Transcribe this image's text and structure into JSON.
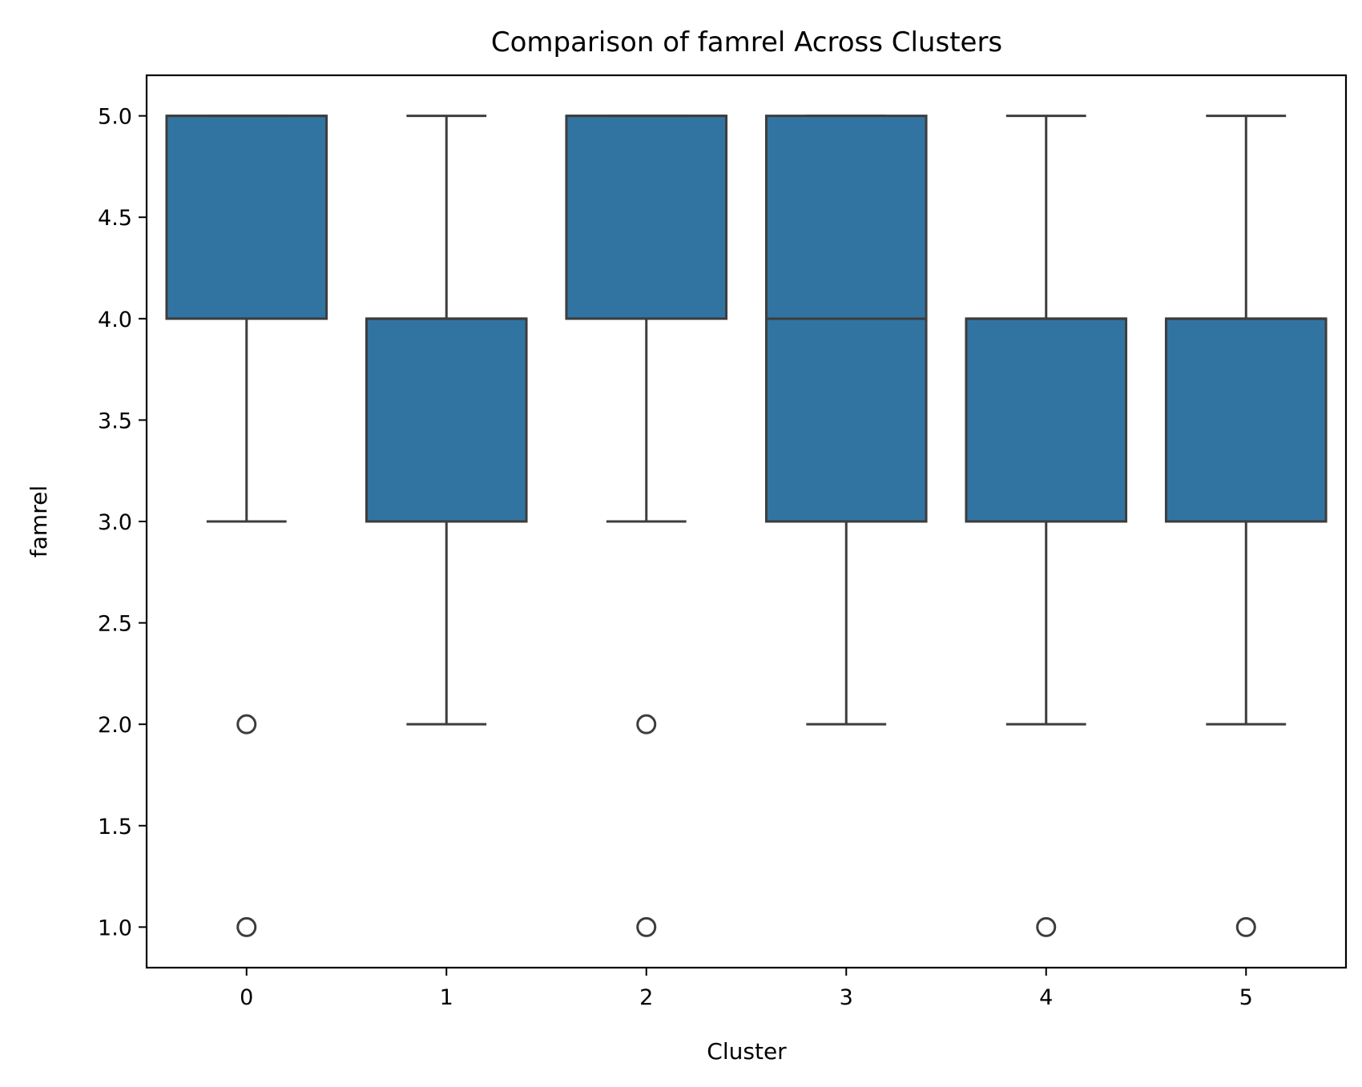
{
  "chart_data": {
    "type": "box",
    "title": "Comparison of famrel Across Clusters",
    "xlabel": "Cluster",
    "ylabel": "famrel",
    "ylim": [
      0.8,
      5.2
    ],
    "yticks": [
      1.0,
      1.5,
      2.0,
      2.5,
      3.0,
      3.5,
      4.0,
      4.5,
      5.0
    ],
    "ytick_labels": [
      "1.0",
      "1.5",
      "2.0",
      "2.5",
      "3.0",
      "3.5",
      "4.0",
      "4.5",
      "5.0"
    ],
    "categories": [
      "0",
      "1",
      "2",
      "3",
      "4",
      "5"
    ],
    "box_color": "#3274a1",
    "line_color": "#3d3d3d",
    "grid": false,
    "boxes": [
      {
        "category": "0",
        "whisker_low": 3.0,
        "q1": 4.0,
        "median": 5.0,
        "q3": 5.0,
        "whisker_high": 5.0,
        "outliers": [
          2.0,
          1.0
        ]
      },
      {
        "category": "1",
        "whisker_low": 2.0,
        "q1": 3.0,
        "median": 4.0,
        "q3": 4.0,
        "whisker_high": 5.0,
        "outliers": []
      },
      {
        "category": "2",
        "whisker_low": 3.0,
        "q1": 4.0,
        "median": 5.0,
        "q3": 5.0,
        "whisker_high": 5.0,
        "outliers": [
          2.0,
          1.0
        ]
      },
      {
        "category": "3",
        "whisker_low": 2.0,
        "q1": 3.0,
        "median": 4.0,
        "q3": 5.0,
        "whisker_high": 5.0,
        "outliers": []
      },
      {
        "category": "4",
        "whisker_low": 2.0,
        "q1": 3.0,
        "median": 4.0,
        "q3": 4.0,
        "whisker_high": 5.0,
        "outliers": [
          1.0
        ]
      },
      {
        "category": "5",
        "whisker_low": 2.0,
        "q1": 3.0,
        "median": 4.0,
        "q3": 4.0,
        "whisker_high": 5.0,
        "outliers": [
          1.0
        ]
      }
    ]
  }
}
